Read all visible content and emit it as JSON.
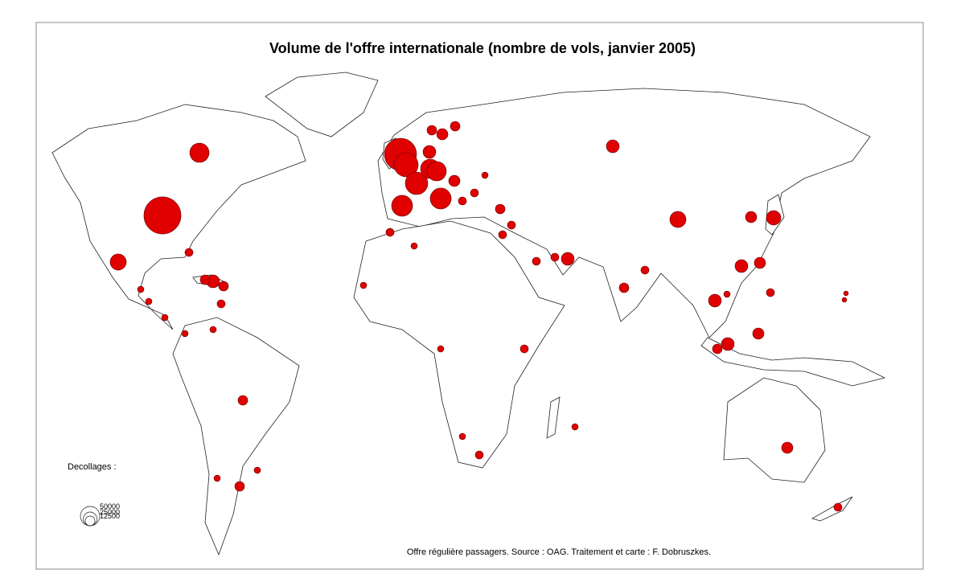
{
  "title": "Volume de l'offre internationale (nombre de vols, janvier 2005)",
  "source": "Offre régulière passagers. Source : OAG. Traitement et carte : F. Dobruszkes.",
  "legend": {
    "title": "Decollages :",
    "values": [
      50000,
      25000,
      12500
    ]
  },
  "bubbles": [
    184000,
    50000,
    35000,
    22000,
    12500,
    12500,
    8700,
    8700,
    139000,
    78000,
    68000,
    50000,
    50000,
    59000,
    59000,
    12500,
    12500,
    17000,
    22000,
    17000,
    8700,
    8700,
    5500,
    22000,
    35000,
    17000,
    28000,
    17000,
    22000,
    22000,
    5500,
    22000,
    12500,
    8700,
    17000,
    22000,
    8700,
    8700,
    12500,
    8700,
    8700,
    12500,
    8700,
    8700,
    5500,
    5500,
    5500,
    8700,
    8700,
    5500,
    5500,
    12500,
    12500,
    5500,
    5500,
    5500,
    5500,
    17000,
    8700,
    3000,
    3000,
    5500,
    5500,
    5500
  ]
}
